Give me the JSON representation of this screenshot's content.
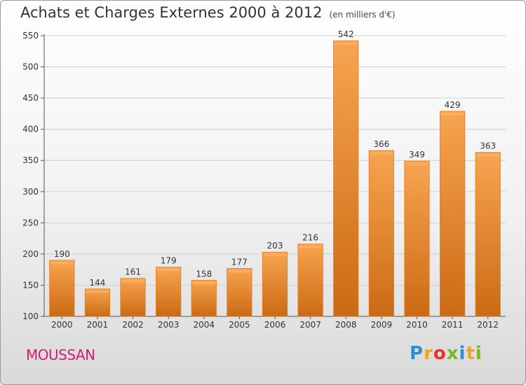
{
  "chart_data": {
    "type": "bar",
    "title": "Achats et Charges Externes 2000 à 2012",
    "subtitle": "(en milliers d'€)",
    "categories": [
      "2000",
      "2001",
      "2002",
      "2003",
      "2004",
      "2005",
      "2006",
      "2007",
      "2008",
      "2009",
      "2010",
      "2011",
      "2012"
    ],
    "values": [
      190,
      144,
      161,
      179,
      158,
      177,
      203,
      216,
      542,
      366,
      349,
      429,
      363
    ],
    "ylim": [
      100,
      550
    ],
    "yticks": [
      100,
      150,
      200,
      250,
      300,
      350,
      400,
      450,
      500,
      550
    ],
    "grid": true,
    "bar_color": "#f0943c"
  },
  "footer": {
    "city": "MOUSSAN",
    "logo_letters": [
      "P",
      "r",
      "o",
      "x",
      "i",
      "t",
      "i"
    ],
    "logo_colors": [
      "#2b8fd6",
      "#f4a320",
      "#e8312f",
      "#7ab829",
      "#2b8fd6",
      "#f4a320",
      "#7ab829"
    ]
  }
}
